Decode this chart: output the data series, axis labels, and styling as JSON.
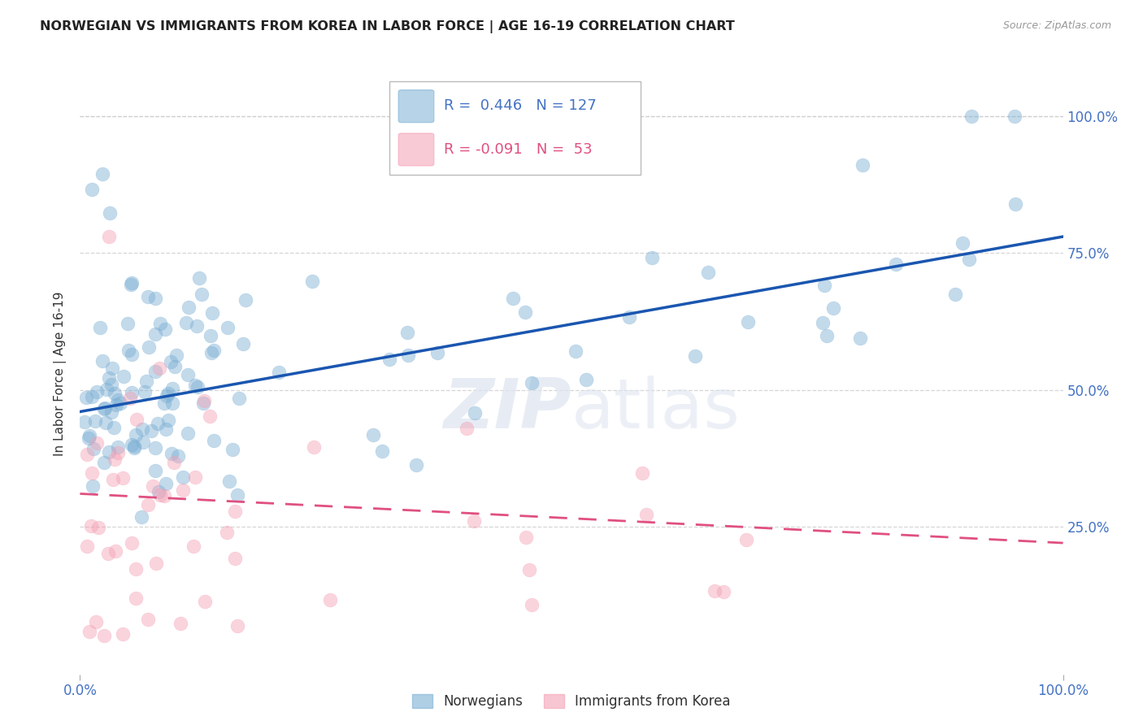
{
  "title": "NORWEGIAN VS IMMIGRANTS FROM KOREA IN LABOR FORCE | AGE 16-19 CORRELATION CHART",
  "source": "Source: ZipAtlas.com",
  "ylabel": "In Labor Force | Age 16-19",
  "xlim": [
    0.0,
    1.0
  ],
  "ylim": [
    -0.02,
    1.08
  ],
  "ytick_labels": [
    "25.0%",
    "50.0%",
    "75.0%",
    "100.0%"
  ],
  "ytick_values": [
    0.25,
    0.5,
    0.75,
    1.0
  ],
  "blue_R": 0.446,
  "blue_N": 127,
  "pink_R": -0.091,
  "pink_N": 53,
  "blue_color": "#7bafd4",
  "pink_color": "#f4a0b5",
  "blue_line_color": "#1a56b0",
  "pink_line_color": "#e05080",
  "background_color": "#ffffff",
  "grid_color": "#cccccc",
  "title_color": "#222222",
  "tick_color": "#4472c4",
  "watermark_color": "#dde4f0",
  "legend_label_blue": "Norwegians",
  "legend_label_pink": "Immigrants from Korea"
}
